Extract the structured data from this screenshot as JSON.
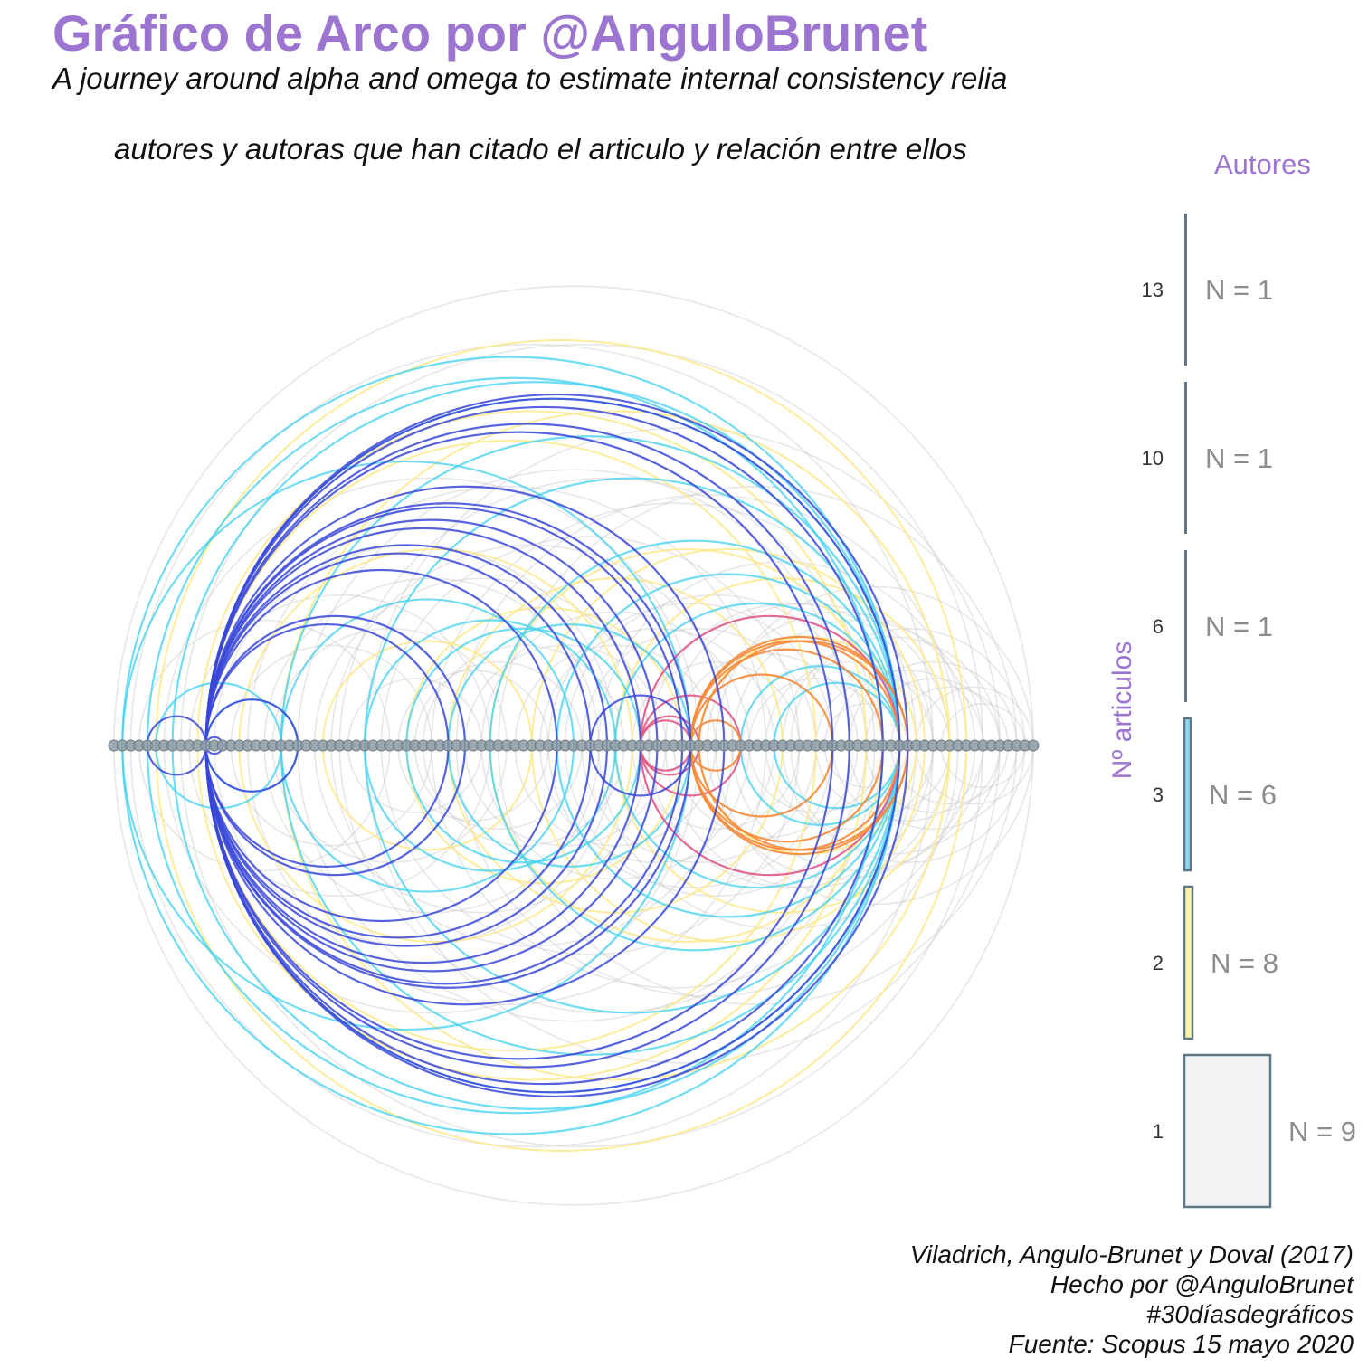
{
  "title": "Gráfico de Arco por @AnguloBrunet",
  "subtitle": "A journey around alpha and omega to estimate internal consistency relia",
  "caption_top": "autores y autoras que han citado el articulo y relación entre ellos",
  "legend": {
    "title": "Autores",
    "axis_label": "Nº articulos",
    "items": [
      {
        "value": "13",
        "count_label": "N = 1",
        "color": "#5f7887"
      },
      {
        "value": "10",
        "count_label": "N = 1",
        "color": "#5f7887"
      },
      {
        "value": "6",
        "count_label": "N = 1",
        "color": "#5f7887"
      },
      {
        "value": "3",
        "count_label": "N = 6",
        "color": "#8fd7ee"
      },
      {
        "value": "2",
        "count_label": "N = 8",
        "color": "#fdf3a6"
      },
      {
        "value": "1",
        "count_label": "N = 9",
        "color": "#f2f2f2"
      }
    ]
  },
  "caption": [
    "Viladrich, Angulo-Brunet y Doval (2017)",
    "Hecho por @AnguloBrunet",
    "#30díasdegráficos",
    "Fuente: Scopus 15 mayo 2020"
  ],
  "colors": {
    "accent": "#9b75cf",
    "node": "#8b9aa3",
    "node_edge": "#6c7d87",
    "arc_grey": "#c9c9c9",
    "arc_yellow": "#fbe98a",
    "arc_cyan": "#3fd0f0",
    "arc_blue": "#3a46d8",
    "arc_orange": "#f5893a",
    "arc_pink": "#e0588a"
  },
  "chart_data": {
    "type": "arc",
    "node_count": 111,
    "edges": [
      {
        "from": 11,
        "to": 69,
        "group": "blue"
      },
      {
        "from": 11,
        "to": 73,
        "group": "blue"
      },
      {
        "from": 11,
        "to": 86,
        "group": "blue"
      },
      {
        "from": 11,
        "to": 92,
        "group": "blue"
      },
      {
        "from": 11,
        "to": 94,
        "group": "blue"
      },
      {
        "from": 11,
        "to": 95,
        "group": "blue"
      },
      {
        "from": 11,
        "to": 53,
        "group": "blue"
      },
      {
        "from": 11,
        "to": 57,
        "group": "blue"
      },
      {
        "from": 11,
        "to": 59,
        "group": "blue"
      },
      {
        "from": 11,
        "to": 42,
        "group": "blue"
      },
      {
        "from": 11,
        "to": 22,
        "group": "blue"
      },
      {
        "from": 11,
        "to": 88,
        "group": "blue"
      },
      {
        "from": 11,
        "to": 13,
        "group": "blue"
      },
      {
        "from": 4,
        "to": 11,
        "group": "blue"
      },
      {
        "from": 57,
        "to": 69,
        "group": "blue"
      },
      {
        "from": 11,
        "to": 63,
        "group": "blue"
      },
      {
        "from": 11,
        "to": 68,
        "group": "blue"
      },
      {
        "from": 11,
        "to": 40,
        "group": "blue"
      },
      {
        "from": 11,
        "to": 65,
        "group": "blue"
      },
      {
        "from": 63,
        "to": 70,
        "group": "pink"
      },
      {
        "from": 63,
        "to": 94,
        "group": "pink"
      },
      {
        "from": 63,
        "to": 75,
        "group": "pink"
      },
      {
        "from": 63,
        "to": 69,
        "group": "pink"
      },
      {
        "from": 69,
        "to": 94,
        "group": "orange"
      },
      {
        "from": 69,
        "to": 92,
        "group": "orange"
      },
      {
        "from": 69,
        "to": 95,
        "group": "orange"
      },
      {
        "from": 69,
        "to": 75,
        "group": "orange"
      },
      {
        "from": 69,
        "to": 86,
        "group": "orange"
      },
      {
        "from": 70,
        "to": 95,
        "group": "orange"
      },
      {
        "from": 1,
        "to": 69,
        "group": "cyan"
      },
      {
        "from": 1,
        "to": 94,
        "group": "cyan"
      },
      {
        "from": 11,
        "to": 94,
        "group": "cyan"
      },
      {
        "from": 20,
        "to": 94,
        "group": "cyan"
      },
      {
        "from": 30,
        "to": 94,
        "group": "cyan"
      },
      {
        "from": 45,
        "to": 94,
        "group": "cyan"
      },
      {
        "from": 53,
        "to": 94,
        "group": "cyan"
      },
      {
        "from": 60,
        "to": 94,
        "group": "cyan"
      },
      {
        "from": 7,
        "to": 94,
        "group": "cyan"
      },
      {
        "from": 75,
        "to": 94,
        "group": "cyan"
      },
      {
        "from": 79,
        "to": 94,
        "group": "cyan"
      },
      {
        "from": 5,
        "to": 20,
        "group": "cyan"
      },
      {
        "from": 40,
        "to": 69,
        "group": "cyan"
      },
      {
        "from": 35,
        "to": 63,
        "group": "cyan"
      },
      {
        "from": 20,
        "to": 55,
        "group": "cyan"
      },
      {
        "from": 4,
        "to": 92,
        "group": "cyan"
      },
      {
        "from": 11,
        "to": 22,
        "group": "cyan"
      },
      {
        "from": 30,
        "to": 60,
        "group": "cyan"
      },
      {
        "from": 10,
        "to": 90,
        "group": "yellow"
      },
      {
        "from": 20,
        "to": 100,
        "group": "yellow"
      },
      {
        "from": 40,
        "to": 80,
        "group": "yellow"
      },
      {
        "from": 60,
        "to": 100,
        "group": "yellow"
      },
      {
        "from": 35,
        "to": 68,
        "group": "yellow"
      },
      {
        "from": 50,
        "to": 97,
        "group": "yellow"
      },
      {
        "from": 25,
        "to": 50,
        "group": "yellow"
      },
      {
        "from": 70,
        "to": 96,
        "group": "yellow"
      },
      {
        "from": 11,
        "to": 84,
        "group": "yellow"
      },
      {
        "from": 5,
        "to": 102,
        "group": "yellow"
      },
      {
        "from": 45,
        "to": 92,
        "group": "yellow"
      },
      {
        "from": 15,
        "to": 62,
        "group": "yellow"
      },
      {
        "from": 0,
        "to": 110,
        "group": "grey"
      },
      {
        "from": 2,
        "to": 98,
        "group": "grey"
      },
      {
        "from": 8,
        "to": 104,
        "group": "grey"
      },
      {
        "from": 12,
        "to": 60,
        "group": "grey"
      },
      {
        "from": 16,
        "to": 78,
        "group": "grey"
      },
      {
        "from": 22,
        "to": 88,
        "group": "grey"
      },
      {
        "from": 26,
        "to": 74,
        "group": "grey"
      },
      {
        "from": 30,
        "to": 106,
        "group": "grey"
      },
      {
        "from": 34,
        "to": 52,
        "group": "grey"
      },
      {
        "from": 38,
        "to": 96,
        "group": "grey"
      },
      {
        "from": 42,
        "to": 66,
        "group": "grey"
      },
      {
        "from": 46,
        "to": 108,
        "group": "grey"
      },
      {
        "from": 48,
        "to": 72,
        "group": "grey"
      },
      {
        "from": 54,
        "to": 90,
        "group": "grey"
      },
      {
        "from": 56,
        "to": 84,
        "group": "grey"
      },
      {
        "from": 58,
        "to": 102,
        "group": "grey"
      },
      {
        "from": 62,
        "to": 82,
        "group": "grey"
      },
      {
        "from": 66,
        "to": 100,
        "group": "grey"
      },
      {
        "from": 72,
        "to": 110,
        "group": "grey"
      },
      {
        "from": 76,
        "to": 92,
        "group": "grey"
      },
      {
        "from": 80,
        "to": 106,
        "group": "grey"
      },
      {
        "from": 84,
        "to": 100,
        "group": "grey"
      },
      {
        "from": 88,
        "to": 108,
        "group": "grey"
      },
      {
        "from": 96,
        "to": 110,
        "group": "grey"
      },
      {
        "from": 3,
        "to": 33,
        "group": "grey"
      },
      {
        "from": 9,
        "to": 45,
        "group": "grey"
      },
      {
        "from": 14,
        "to": 38,
        "group": "grey"
      },
      {
        "from": 18,
        "to": 58,
        "group": "grey"
      },
      {
        "from": 24,
        "to": 64,
        "group": "grey"
      },
      {
        "from": 28,
        "to": 44,
        "group": "grey"
      },
      {
        "from": 32,
        "to": 82,
        "group": "grey"
      },
      {
        "from": 36,
        "to": 56,
        "group": "grey"
      },
      {
        "from": 44,
        "to": 76,
        "group": "grey"
      },
      {
        "from": 52,
        "to": 86,
        "group": "grey"
      },
      {
        "from": 64,
        "to": 98,
        "group": "grey"
      },
      {
        "from": 74,
        "to": 104,
        "group": "grey"
      },
      {
        "from": 78,
        "to": 98,
        "group": "grey"
      },
      {
        "from": 86,
        "to": 104,
        "group": "grey"
      },
      {
        "from": 90,
        "to": 106,
        "group": "grey"
      },
      {
        "from": 6,
        "to": 70,
        "group": "grey"
      },
      {
        "from": 19,
        "to": 47,
        "group": "grey"
      },
      {
        "from": 27,
        "to": 91,
        "group": "grey"
      },
      {
        "from": 37,
        "to": 61,
        "group": "grey"
      },
      {
        "from": 41,
        "to": 101,
        "group": "grey"
      },
      {
        "from": 51,
        "to": 79,
        "group": "grey"
      },
      {
        "from": 67,
        "to": 89,
        "group": "grey"
      },
      {
        "from": 71,
        "to": 103,
        "group": "grey"
      },
      {
        "from": 81,
        "to": 109,
        "group": "grey"
      },
      {
        "from": 85,
        "to": 95,
        "group": "grey"
      },
      {
        "from": 93,
        "to": 107,
        "group": "grey"
      },
      {
        "from": 99,
        "to": 109,
        "group": "grey"
      }
    ]
  }
}
